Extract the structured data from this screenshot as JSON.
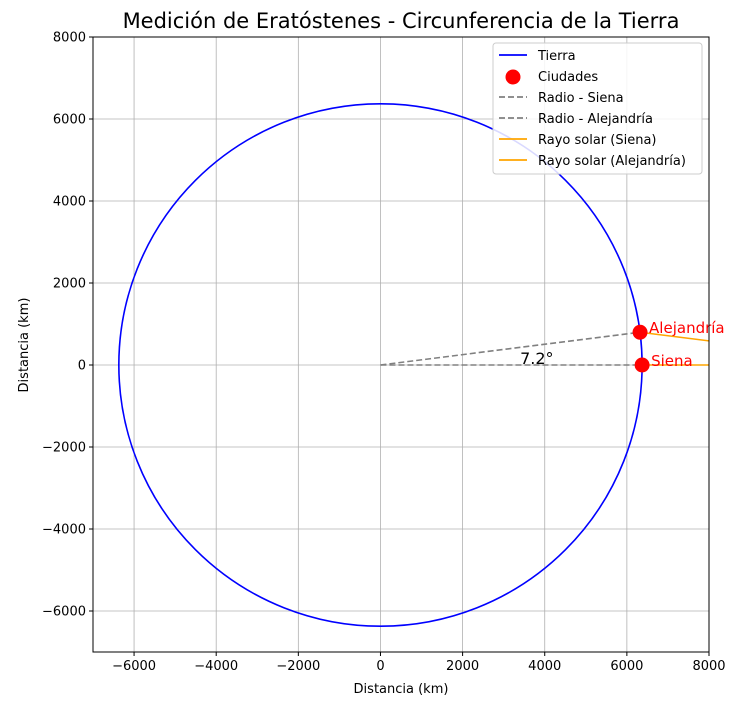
{
  "chart_data": {
    "type": "line",
    "title": "Medición de Eratóstenes - Circunferencia de la Tierra",
    "xlabel": "Distancia (km)",
    "ylabel": "Distancia (km)",
    "xlim": [
      -7000,
      8000
    ],
    "ylim": [
      -7000,
      8000
    ],
    "xticks": [
      -6000,
      -4000,
      -2000,
      0,
      2000,
      4000,
      6000,
      8000
    ],
    "yticks": [
      -6000,
      -4000,
      -2000,
      0,
      2000,
      4000,
      6000,
      8000
    ],
    "xtick_labels": [
      "−6000",
      "−4000",
      "−2000",
      "0",
      "2000",
      "4000",
      "6000",
      "8000"
    ],
    "ytick_labels": [
      "−6000",
      "−4000",
      "−2000",
      "0",
      "2000",
      "4000",
      "6000",
      "8000"
    ],
    "grid": true,
    "legend_position": "top-right",
    "earth": {
      "center": [
        0,
        0
      ],
      "radius": 6371
    },
    "cities": [
      {
        "name": "Siena",
        "x": 6371,
        "y": 0
      },
      {
        "name": "Alejandría",
        "x": 6321,
        "y": 799
      }
    ],
    "radius_lines": [
      {
        "name": "Radio - Siena",
        "from": [
          0,
          0
        ],
        "to": [
          6371,
          0
        ]
      },
      {
        "name": "Radio - Alejandría",
        "from": [
          0,
          0
        ],
        "to": [
          6321,
          799
        ]
      }
    ],
    "sun_rays": [
      {
        "name": "Rayo solar (Siena)",
        "from": [
          6371,
          0
        ],
        "to": [
          8000,
          0
        ]
      },
      {
        "name": "Rayo solar (Alejandría)",
        "from": [
          6321,
          799
        ],
        "to": [
          8000,
          588
        ]
      }
    ],
    "angle_annotation": {
      "text": "7.2°",
      "x": 3400,
      "y": 0
    },
    "series": [
      {
        "name": "Tierra",
        "kind": "line",
        "color": "#0000ff",
        "dash": "solid"
      },
      {
        "name": "Ciudades",
        "kind": "scatter",
        "color": "#ff0000"
      },
      {
        "name": "Radio - Siena",
        "kind": "line",
        "color": "#808080",
        "dash": "dashed"
      },
      {
        "name": "Radio - Alejandría",
        "kind": "line",
        "color": "#808080",
        "dash": "dashed"
      },
      {
        "name": "Rayo solar (Siena)",
        "kind": "line",
        "color": "#ffa500",
        "dash": "solid"
      },
      {
        "name": "Rayo solar (Alejandría)",
        "kind": "line",
        "color": "#ffa500",
        "dash": "solid"
      }
    ],
    "colors": {
      "earth": "#0000ff",
      "cities": "#ff0000",
      "radius": "#808080",
      "ray": "#ffa500",
      "grid": "#b0b0b0",
      "city_label": "#ff0000"
    }
  }
}
